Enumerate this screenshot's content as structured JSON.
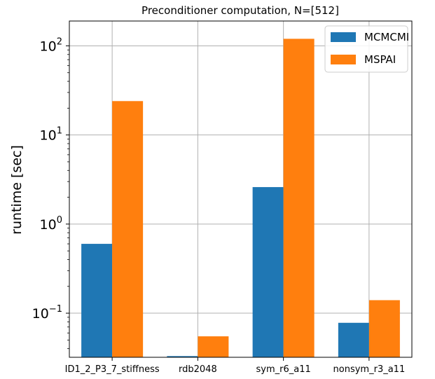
{
  "chart_data": {
    "type": "bar",
    "title": "Preconditioner computation, N=[512]",
    "xlabel": "",
    "ylabel": "runtime [sec]",
    "yscale": "log",
    "ylim": [
      0.032,
      190
    ],
    "categories": [
      "ID1_2_P3_7_stiffness",
      "rdb2048",
      "sym_r6_a11",
      "nonsym_r3_a11"
    ],
    "series": [
      {
        "name": "MCMCMI",
        "color": "#1f77b4",
        "values": [
          0.6,
          0.033,
          2.6,
          0.078
        ]
      },
      {
        "name": "MSPAI",
        "color": "#ff7f0e",
        "values": [
          24,
          0.055,
          120,
          0.14
        ]
      }
    ],
    "yticks": [
      {
        "value": 0.1,
        "base": "10",
        "exp": "−1"
      },
      {
        "value": 1,
        "base": "10",
        "exp": "0"
      },
      {
        "value": 10,
        "base": "10",
        "exp": "1"
      },
      {
        "value": 100,
        "base": "10",
        "exp": "2"
      }
    ],
    "grid": true,
    "legend_position": "top-right"
  }
}
